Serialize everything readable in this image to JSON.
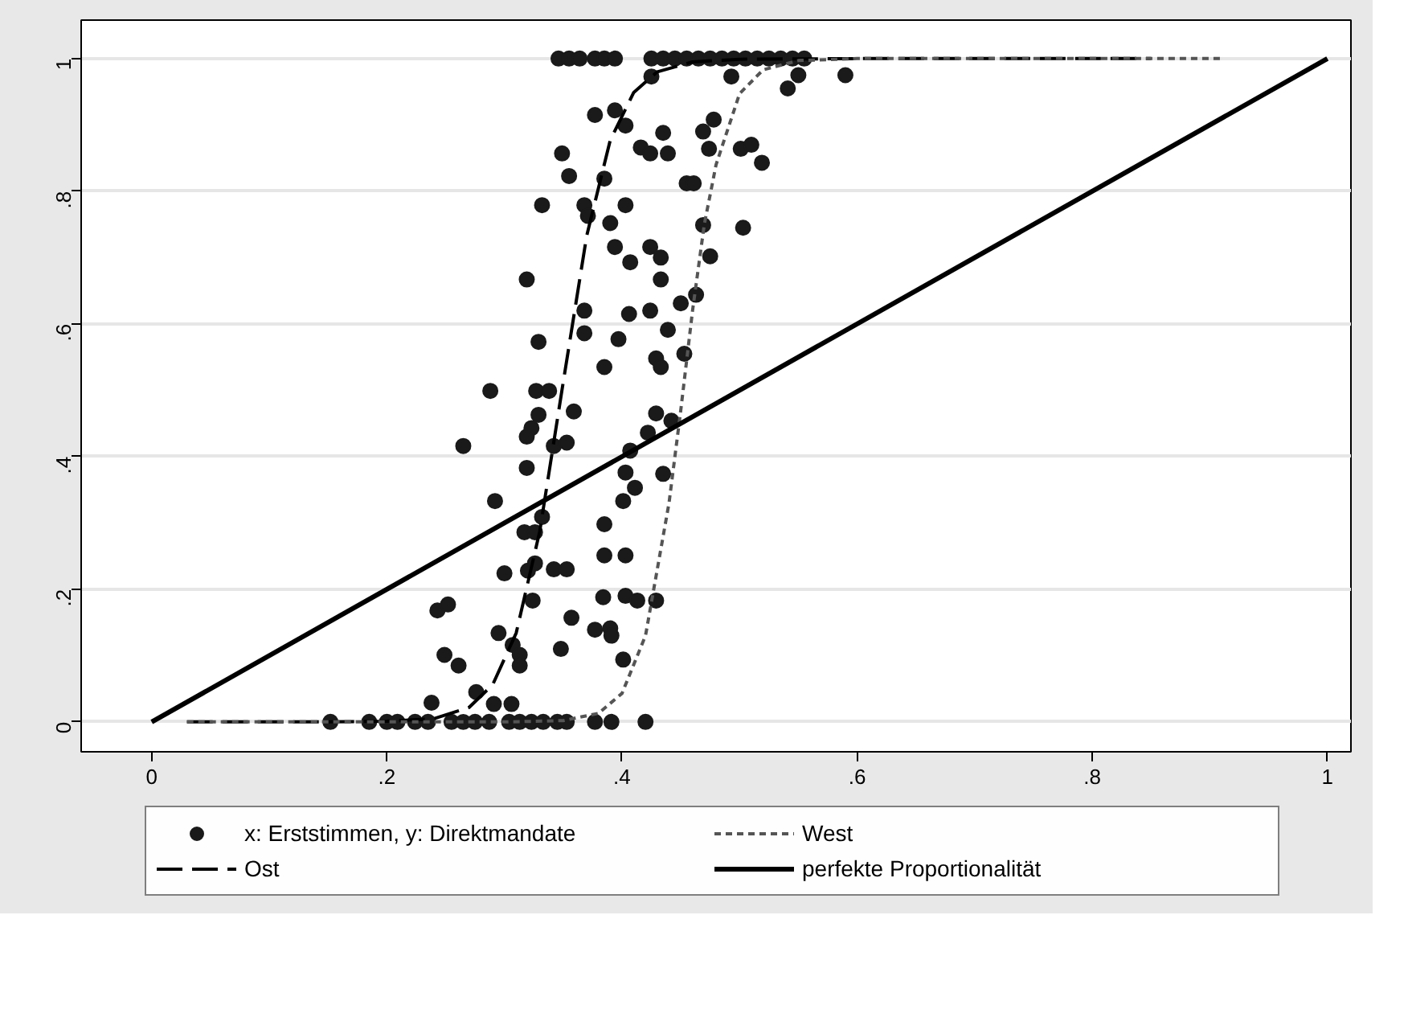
{
  "chart_data": {
    "type": "scatter",
    "xlim": [
      -0.06,
      1.02
    ],
    "ylim": [
      -0.045,
      1.058
    ],
    "xticks": [
      {
        "value": 0,
        "label": "0"
      },
      {
        "value": 0.2,
        "label": ".2"
      },
      {
        "value": 0.4,
        "label": ".4"
      },
      {
        "value": 0.6,
        "label": ".6"
      },
      {
        "value": 0.8,
        "label": ".8"
      },
      {
        "value": 1,
        "label": "1"
      }
    ],
    "yticks": [
      {
        "value": 0,
        "label": "0"
      },
      {
        "value": 0.2,
        "label": ".2"
      },
      {
        "value": 0.4,
        "label": ".4"
      },
      {
        "value": 0.6,
        "label": ".6"
      },
      {
        "value": 0.8,
        "label": ".8"
      },
      {
        "value": 1,
        "label": "1"
      }
    ],
    "grid": "y",
    "legend": "bottom",
    "series": [
      {
        "name": "x: Erststimmen, y: Direktmandate",
        "marker": "circle",
        "color": "#1a1a1a",
        "x": [
          0.346,
          0.355,
          0.364,
          0.377,
          0.385,
          0.394,
          0.425,
          0.435,
          0.445,
          0.455,
          0.465,
          0.475,
          0.485,
          0.495,
          0.505,
          0.515,
          0.525,
          0.535,
          0.545,
          0.555,
          0.425,
          0.493,
          0.55,
          0.541,
          0.59,
          0.377,
          0.394,
          0.403,
          0.435,
          0.469,
          0.478,
          0.349,
          0.416,
          0.424,
          0.439,
          0.474,
          0.501,
          0.51,
          0.519,
          0.355,
          0.385,
          0.455,
          0.461,
          0.332,
          0.368,
          0.371,
          0.403,
          0.39,
          0.469,
          0.503,
          0.394,
          0.407,
          0.424,
          0.433,
          0.475,
          0.319,
          0.433,
          0.368,
          0.406,
          0.424,
          0.45,
          0.463,
          0.368,
          0.397,
          0.439,
          0.329,
          0.453,
          0.429,
          0.385,
          0.433,
          0.288,
          0.327,
          0.338,
          0.359,
          0.329,
          0.323,
          0.319,
          0.342,
          0.353,
          0.265,
          0.429,
          0.442,
          0.422,
          0.407,
          0.403,
          0.411,
          0.435,
          0.401,
          0.319,
          0.292,
          0.332,
          0.317,
          0.326,
          0.385,
          0.385,
          0.403,
          0.3,
          0.32,
          0.326,
          0.342,
          0.353,
          0.243,
          0.252,
          0.324,
          0.384,
          0.403,
          0.413,
          0.429,
          0.357,
          0.295,
          0.307,
          0.313,
          0.313,
          0.348,
          0.377,
          0.39,
          0.391,
          0.401,
          0.249,
          0.261,
          0.276,
          0.291,
          0.306,
          0.238,
          0.152,
          0.185,
          0.2,
          0.209,
          0.224,
          0.235,
          0.255,
          0.265,
          0.275,
          0.287,
          0.304,
          0.313,
          0.323,
          0.333,
          0.345,
          0.353,
          0.377,
          0.391,
          0.42
        ],
        "values": [
          1,
          1,
          1,
          1,
          1,
          1,
          1,
          1,
          1,
          1,
          1,
          1,
          1,
          1,
          1,
          1,
          1,
          1,
          1,
          1,
          0.973,
          0.973,
          0.975,
          0.955,
          0.975,
          0.915,
          0.922,
          0.899,
          0.888,
          0.89,
          0.908,
          0.857,
          0.866,
          0.857,
          0.857,
          0.864,
          0.864,
          0.87,
          0.843,
          0.823,
          0.819,
          0.812,
          0.812,
          0.779,
          0.779,
          0.763,
          0.779,
          0.752,
          0.749,
          0.745,
          0.716,
          0.693,
          0.716,
          0.7,
          0.702,
          0.667,
          0.667,
          0.62,
          0.615,
          0.62,
          0.631,
          0.644,
          0.586,
          0.577,
          0.591,
          0.573,
          0.555,
          0.548,
          0.535,
          0.535,
          0.499,
          0.499,
          0.499,
          0.468,
          0.463,
          0.443,
          0.43,
          0.416,
          0.421,
          0.416,
          0.465,
          0.454,
          0.436,
          0.409,
          0.376,
          0.353,
          0.374,
          0.333,
          0.383,
          0.333,
          0.309,
          0.286,
          0.286,
          0.298,
          0.251,
          0.251,
          0.224,
          0.228,
          0.239,
          0.23,
          0.23,
          0.168,
          0.177,
          0.183,
          0.188,
          0.19,
          0.183,
          0.183,
          0.157,
          0.134,
          0.116,
          0.101,
          0.085,
          0.11,
          0.139,
          0.141,
          0.13,
          0.094,
          0.101,
          0.085,
          0.045,
          0.027,
          0.027,
          0.029,
          0,
          0,
          0,
          0,
          0,
          0,
          0,
          0,
          0,
          0,
          0,
          0,
          0,
          0,
          0,
          0,
          0,
          0,
          0
        ]
      },
      {
        "name": "Ost",
        "type": "line",
        "line_style": "dashed",
        "color": "#000000",
        "x": [
          0.03,
          0.15,
          0.2,
          0.24,
          0.27,
          0.29,
          0.31,
          0.33,
          0.35,
          0.37,
          0.39,
          0.41,
          0.43,
          0.46,
          0.5,
          0.6,
          0.85
        ],
        "values": [
          0,
          0,
          0.001,
          0.005,
          0.022,
          0.056,
          0.134,
          0.287,
          0.512,
          0.733,
          0.877,
          0.949,
          0.98,
          0.995,
          0.999,
          1,
          1
        ]
      },
      {
        "name": "West",
        "type": "line",
        "line_style": "dotted",
        "color": "#555555",
        "x": [
          0.03,
          0.3,
          0.35,
          0.38,
          0.4,
          0.42,
          0.44,
          0.45,
          0.46,
          0.47,
          0.48,
          0.5,
          0.52,
          0.55,
          0.6,
          0.91
        ],
        "values": [
          0,
          0,
          0.002,
          0.013,
          0.043,
          0.13,
          0.33,
          0.47,
          0.62,
          0.75,
          0.84,
          0.947,
          0.983,
          0.997,
          1,
          1
        ]
      },
      {
        "name": "perfekte Proportionalität",
        "type": "line",
        "line_style": "solid",
        "color": "#000000",
        "x": [
          0,
          1
        ],
        "values": [
          0,
          1
        ]
      }
    ]
  }
}
